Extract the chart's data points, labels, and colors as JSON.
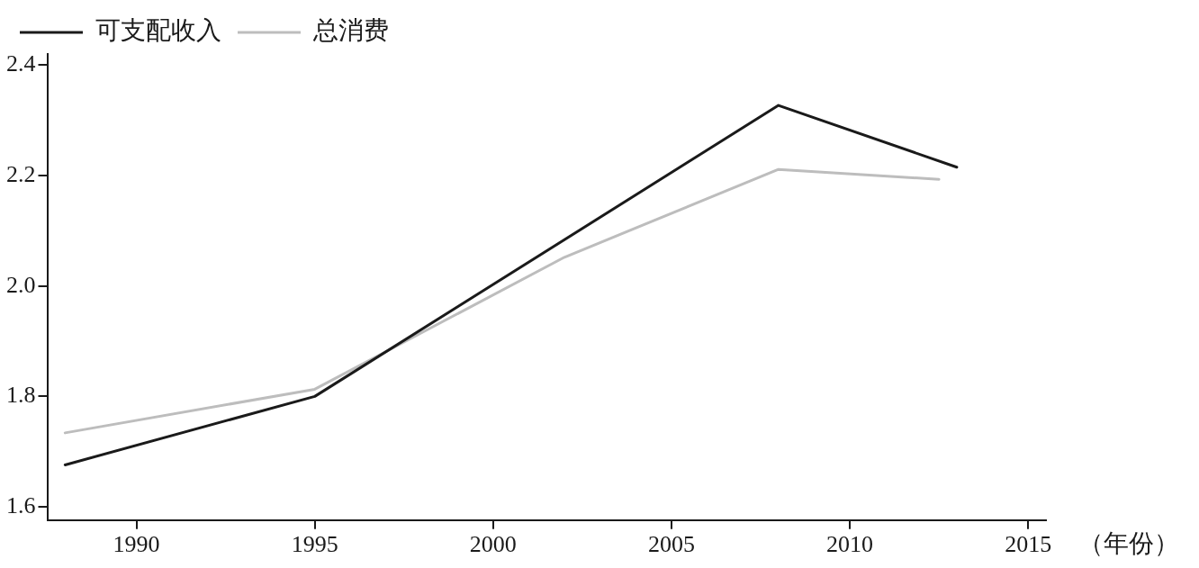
{
  "chart_data": {
    "type": "line",
    "xlabel": "（年份）",
    "series": [
      {
        "name": "可支配收入",
        "color": "#1a1a1a",
        "x": [
          1988,
          1995,
          2008,
          2013
        ],
        "values": [
          1.676,
          1.8,
          2.327,
          2.215
        ]
      },
      {
        "name": "总消费",
        "color": "#bdbdbd",
        "x": [
          1988,
          1995,
          2002,
          2008,
          2012.5
        ],
        "values": [
          1.734,
          1.813,
          2.052,
          2.211,
          2.193
        ]
      }
    ],
    "xlim": [
      1987.5,
      2015.5
    ],
    "xticks": [
      1990,
      1995,
      2000,
      2005,
      2010,
      2015
    ],
    "ylim": [
      1.576,
      2.42
    ],
    "yticks": [
      {
        "value": 1.6,
        "label": "1.6"
      },
      {
        "value": 1.8,
        "label": "1.8"
      },
      {
        "value": 2.0,
        "label": "2.0"
      },
      {
        "value": 2.2,
        "label": "2.2"
      },
      {
        "value": 2.4,
        "label": "2.4"
      }
    ],
    "grid": false,
    "legend": "top left",
    "marker": "none",
    "line_style": "solid"
  }
}
